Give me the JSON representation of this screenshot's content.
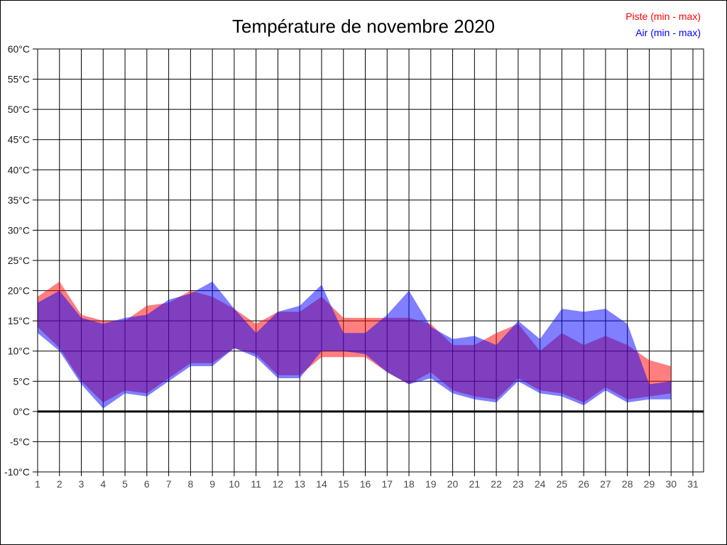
{
  "title": "Température de novembre 2020",
  "legend": {
    "piste_label": "Piste (min - max)",
    "air_label": "Air (min - max)"
  },
  "colors": {
    "piste_text": "#ff0000",
    "air_text": "#0000ff",
    "piste_fill": "rgba(255,0,0,0.5)",
    "air_fill": "rgba(0,0,255,0.5)",
    "grid": "#000000",
    "y_tick_label": "#1a1a1a",
    "x_tick_label": "#4a4a4a"
  },
  "chart_data": {
    "type": "area",
    "title": "Température de novembre 2020",
    "ylabel": "",
    "xlabel": "",
    "ylim": [
      -10,
      60
    ],
    "ytick_step": 5,
    "ytick_suffix": "°C",
    "x_axis_ticks": [
      1,
      2,
      3,
      4,
      5,
      6,
      7,
      8,
      9,
      10,
      11,
      12,
      13,
      14,
      15,
      16,
      17,
      18,
      19,
      20,
      21,
      22,
      23,
      24,
      25,
      26,
      27,
      28,
      29,
      30,
      31
    ],
    "days": [
      1,
      2,
      3,
      4,
      5,
      6,
      7,
      8,
      9,
      10,
      11,
      12,
      13,
      14,
      15,
      16,
      17,
      18,
      19,
      20,
      21,
      22,
      23,
      24,
      25,
      26,
      27,
      28,
      29,
      30
    ],
    "grid": true,
    "zero_line_bold": true,
    "legend_position": "top-right",
    "series": [
      {
        "name": "Piste (min - max)",
        "color": "#ff0000",
        "fill": "rgba(255,0,0,0.5)",
        "min": [
          14,
          10.5,
          5,
          1.5,
          3.5,
          3,
          5.5,
          8,
          8,
          10.5,
          9.5,
          6,
          6,
          9,
          9,
          9,
          6.5,
          4.5,
          6.5,
          3.5,
          2.5,
          2,
          5.5,
          3.5,
          3,
          1.5,
          4,
          2,
          2.5,
          3
        ],
        "max": [
          19,
          21.5,
          16,
          15,
          15,
          17.5,
          18,
          20,
          19,
          17,
          14.5,
          16.5,
          16.5,
          19,
          15.5,
          15.5,
          15.5,
          15.5,
          14.5,
          11,
          11,
          13,
          14.5,
          10,
          13,
          11,
          12.5,
          11,
          8.5,
          7.5
        ]
      },
      {
        "name": "Air (min - max)",
        "color": "#0000ff",
        "fill": "rgba(0,0,255,0.5)",
        "min": [
          13,
          10,
          4.5,
          0.5,
          3,
          2.5,
          5,
          7.5,
          7.5,
          10.5,
          9,
          5.5,
          5.5,
          10,
          10,
          9.5,
          6.5,
          4.5,
          5.5,
          3,
          2,
          1.5,
          5,
          3,
          2.5,
          1,
          3.5,
          1.5,
          2,
          2
        ],
        "max": [
          18,
          20,
          15.5,
          14.5,
          15.5,
          16,
          18.5,
          19.5,
          21.5,
          17,
          13,
          16.5,
          17.5,
          21,
          13,
          13,
          16,
          20,
          14,
          12,
          12.5,
          11,
          15,
          12,
          17,
          16.5,
          17,
          14.5,
          4.5,
          5
        ]
      }
    ]
  }
}
